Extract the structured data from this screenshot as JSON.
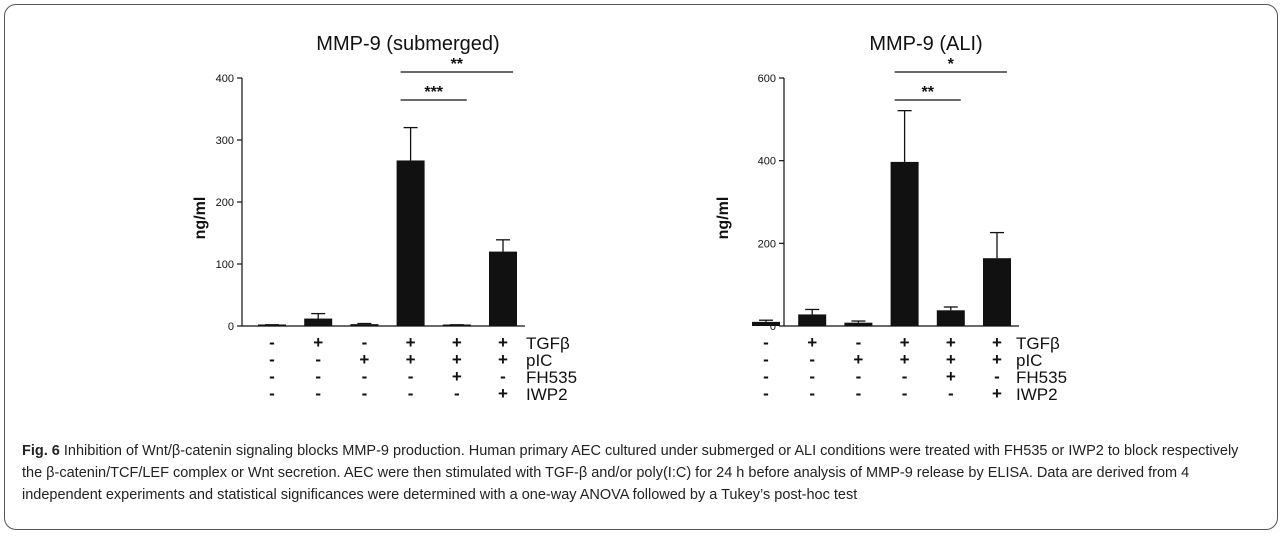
{
  "chart_data": [
    {
      "type": "bar",
      "title": "MMP-9 (submerged)",
      "ylabel": "ng/ml",
      "ylim": [
        0,
        400
      ],
      "yticks": [
        0,
        100,
        200,
        300,
        400
      ],
      "values": [
        1,
        12,
        3,
        267,
        1,
        120
      ],
      "errors": [
        1,
        8,
        1,
        53,
        1,
        19
      ],
      "significance": [
        {
          "from": 3,
          "to": 4,
          "label": "***"
        },
        {
          "from": 3,
          "to": 5,
          "label": "**"
        }
      ],
      "conditions": [
        {
          "name": "TGFβ",
          "signs": [
            "-",
            "+",
            "-",
            "+",
            "+",
            "+"
          ]
        },
        {
          "name": "pIC",
          "signs": [
            "-",
            "-",
            "+",
            "+",
            "+",
            "+"
          ]
        },
        {
          "name": "FH535",
          "signs": [
            "-",
            "-",
            "-",
            "-",
            "+",
            "-"
          ]
        },
        {
          "name": "IWP2",
          "signs": [
            "-",
            "-",
            "-",
            "-",
            "-",
            "+"
          ]
        }
      ]
    },
    {
      "type": "bar",
      "title": "MMP-9 (ALI)",
      "ylabel": "ng/ml",
      "ylim": [
        0,
        600
      ],
      "yticks": [
        0,
        200,
        400,
        600
      ],
      "values": [
        10,
        28,
        8,
        397,
        38,
        164
      ],
      "errors": [
        4,
        12,
        4,
        124,
        8,
        62
      ],
      "significance": [
        {
          "from": 3,
          "to": 4,
          "label": "**"
        },
        {
          "from": 3,
          "to": 5,
          "label": "*"
        }
      ],
      "conditions": [
        {
          "name": "TGFβ",
          "signs": [
            "-",
            "+",
            "-",
            "+",
            "+",
            "+"
          ]
        },
        {
          "name": "pIC",
          "signs": [
            "-",
            "-",
            "+",
            "+",
            "+",
            "+"
          ]
        },
        {
          "name": "FH535",
          "signs": [
            "-",
            "-",
            "-",
            "-",
            "+",
            "-"
          ]
        },
        {
          "name": "IWP2",
          "signs": [
            "-",
            "-",
            "-",
            "-",
            "-",
            "+"
          ]
        }
      ]
    }
  ],
  "caption": {
    "label": "Fig. 6",
    "text": " Inhibition of Wnt/β-catenin signaling blocks MMP-9 production. Human primary AEC cultured under submerged or ALI conditions were treated with FH535 or IWP2 to block respectively the β-catenin/TCF/LEF complex or Wnt secretion. AEC were then stimulated with TGF-β and/or poly(I:C) for 24 h before analysis of MMP-9 release by ELISA. Data are derived from 4 independent experiments and statistical significances were determined with a one-way ANOVA followed by a Tukey’s post-hoc test"
  },
  "colors": {
    "bar": "#111111",
    "axis": "#111111"
  }
}
